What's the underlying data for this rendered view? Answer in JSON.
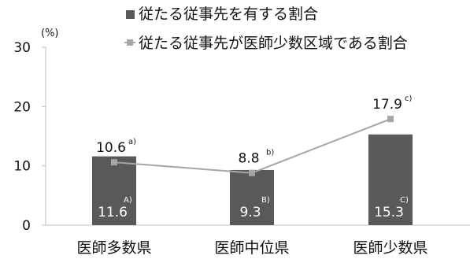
{
  "chart_data": {
    "type": "bar",
    "unit": "(%)",
    "ylim": [
      0,
      30
    ],
    "yticks": [
      "0",
      "10",
      "20",
      "30"
    ],
    "categories": [
      "医師多数県",
      "医師中位県",
      "医師少数県"
    ],
    "series": [
      {
        "name": "従たる従事先を有する割合",
        "type": "bar",
        "color": "#595959",
        "values": [
          11.6,
          9.3,
          15.3
        ],
        "labels": [
          "11.6",
          "9.3",
          "15.3"
        ],
        "notes": [
          "A)",
          "B)",
          "C)"
        ]
      },
      {
        "name": "従たる従事先が医師少数区域である割合",
        "type": "line",
        "color": "#a6a6a6",
        "values": [
          10.6,
          8.8,
          17.9
        ],
        "labels": [
          "10.6",
          "8.8",
          "17.9"
        ],
        "notes": [
          "a)",
          "b)",
          "c)"
        ]
      }
    ]
  }
}
